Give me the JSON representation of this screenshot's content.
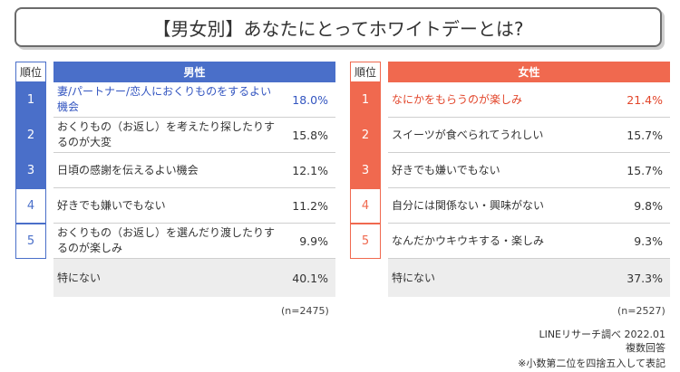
{
  "title": "【男女別】あなたにとってホワイトデーとは?",
  "rank_header": "順位",
  "male": {
    "header": "男性",
    "rows": [
      {
        "rank": "1",
        "label": "妻/パートナー/恋人におくりものをするよい機会",
        "value": "18.0%"
      },
      {
        "rank": "2",
        "label": "おくりもの（お返し）を考えたり探したりするのが大変",
        "value": "15.8%"
      },
      {
        "rank": "3",
        "label": "日頃の感謝を伝えるよい機会",
        "value": "12.1%"
      },
      {
        "rank": "4",
        "label": "好きでも嫌いでもない",
        "value": "11.2%"
      },
      {
        "rank": "5",
        "label": "おくりもの（お返し）を選んだり渡したりするのが楽しみ",
        "value": "9.9%"
      }
    ],
    "none_label": "特にない",
    "none_value": "40.1%",
    "n": "(n=2475)"
  },
  "female": {
    "header": "女性",
    "rows": [
      {
        "rank": "1",
        "label": "なにかをもらうのが楽しみ",
        "value": "21.4%"
      },
      {
        "rank": "2",
        "label": "スイーツが食べられてうれしい",
        "value": "15.7%"
      },
      {
        "rank": "3",
        "label": "好きでも嫌いでもない",
        "value": "15.7%"
      },
      {
        "rank": "4",
        "label": "自分には関係ない・興味がない",
        "value": "9.8%"
      },
      {
        "rank": "5",
        "label": "なんだかウキウキする・楽しみ",
        "value": "9.3%"
      }
    ],
    "none_label": "特にない",
    "none_value": "37.3%",
    "n": "(n=2527)"
  },
  "footer": {
    "source": "LINEリサーチ調べ 2022.01",
    "multi": "複数回答",
    "note": "※小数第二位を四捨五入して表記"
  }
}
